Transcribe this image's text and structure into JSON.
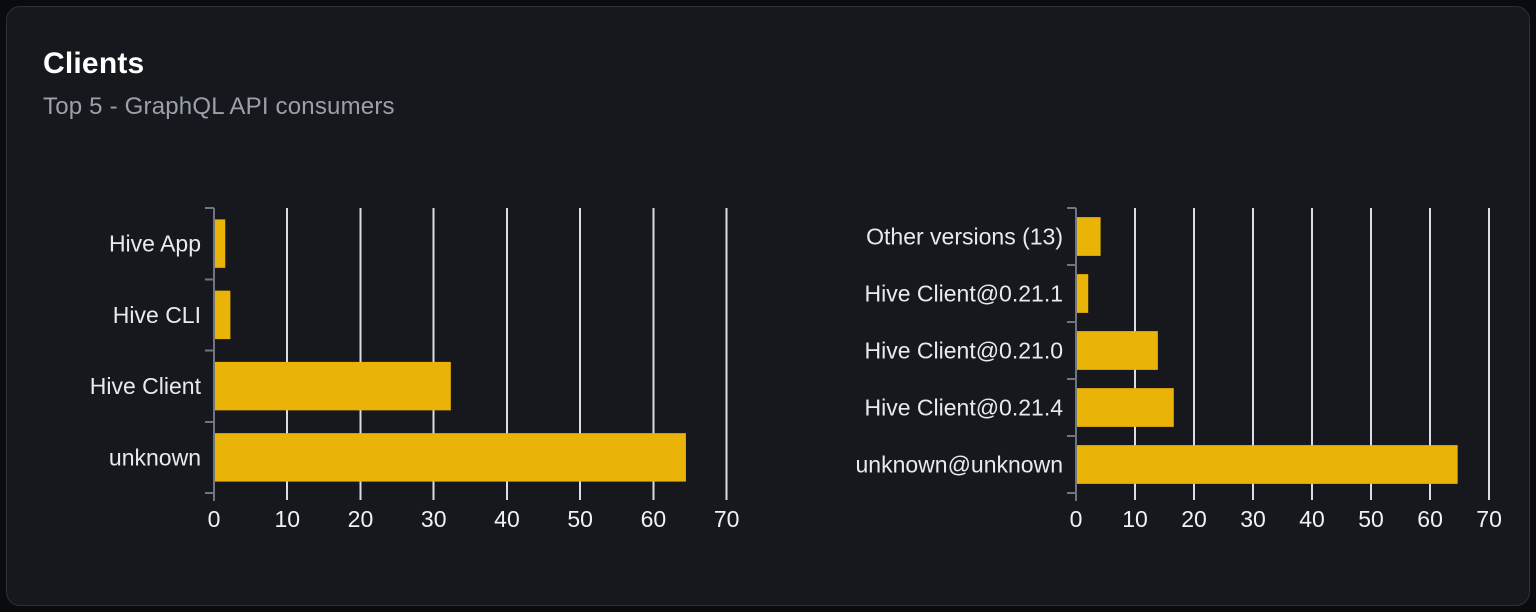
{
  "page": {
    "title": "Clients",
    "subtitle": "Top 5 - GraphQL API consumers"
  },
  "colors": {
    "page_bg": "#0A0B0E",
    "card_bg": "#16181D",
    "card_border": "#2C3039",
    "title": "#FFFFFF",
    "subtitle": "#9AA1AB",
    "bar": "#EAB308",
    "gridline": "#D9DDE7",
    "axis": "#70747E",
    "category_label": "#E8EAEE",
    "tick_label": "#EFF1F4"
  },
  "chart_data": [
    {
      "type": "bar",
      "orientation": "horizontal",
      "title": "",
      "categories": [
        "Hive App",
        "Hive CLI",
        "Hive Client",
        "unknown"
      ],
      "values": [
        1.4,
        2.1,
        32.2,
        64.3
      ],
      "xlabel": "",
      "ylabel": "",
      "x_ticks": [
        0,
        10,
        20,
        30,
        40,
        50,
        60,
        70
      ],
      "xlim": [
        0,
        71
      ],
      "grid": true,
      "legend": false
    },
    {
      "type": "bar",
      "orientation": "horizontal",
      "title": "",
      "categories": [
        "Other versions (13)",
        "Hive Client@0.21.1",
        "Hive Client@0.21.0",
        "Hive Client@0.21.4",
        "unknown@unknown"
      ],
      "values": [
        4.0,
        1.9,
        13.7,
        16.4,
        64.5
      ],
      "xlabel": "",
      "ylabel": "",
      "x_ticks": [
        0,
        10,
        20,
        30,
        40,
        50,
        60,
        70
      ],
      "xlim": [
        0,
        71
      ],
      "grid": true,
      "legend": false
    }
  ]
}
